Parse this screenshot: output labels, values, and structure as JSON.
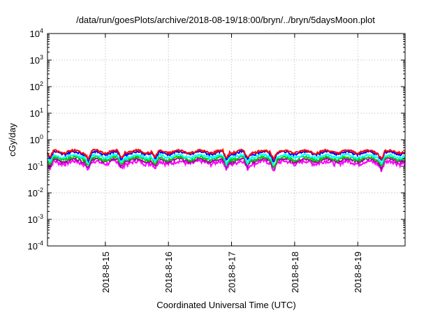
{
  "chart_data": {
    "type": "line",
    "title": "/data/run/goesPlots/archive/2018-08-19/18:00/bryn/../bryn/5daysMoon.plot",
    "xlabel": "Coordinated Universal Time (UTC)",
    "ylabel": "cGy/day",
    "yscale": "log",
    "ylim": [
      0.0001,
      10000
    ],
    "xlim": [
      "2018-08-14 02:00",
      "2018-08-19 18:00"
    ],
    "grid": true,
    "y_ticks": [
      {
        "base": "10",
        "exp": "-4"
      },
      {
        "base": "10",
        "exp": "-3"
      },
      {
        "base": "10",
        "exp": "-2"
      },
      {
        "base": "10",
        "exp": "-1"
      },
      {
        "base": "10",
        "exp": "0"
      },
      {
        "base": "10",
        "exp": "1"
      },
      {
        "base": "10",
        "exp": "2"
      },
      {
        "base": "10",
        "exp": "3"
      },
      {
        "base": "10",
        "exp": "4"
      }
    ],
    "x_ticks": [
      "2018-8-15",
      "2018-8-16",
      "2018-8-17",
      "2018-8-18",
      "2018-8-19"
    ],
    "series": [
      {
        "color": "#ff0000",
        "level": 0.36,
        "spread": 0.04
      },
      {
        "color": "#0000ff",
        "level": 0.32,
        "spread": 0.04
      },
      {
        "color": "#00ffff",
        "level": 0.24,
        "spread": 0.03
      },
      {
        "color": "#00cc00",
        "level": 0.2,
        "spread": 0.03
      },
      {
        "color": "#a000a0",
        "level": 0.17,
        "spread": 0.025
      },
      {
        "color": "#ff00ff",
        "level": 0.14,
        "spread": 0.03
      }
    ],
    "dips_utc": [
      "2018-08-14 03:00",
      "2018-08-14 17:30",
      "2018-08-15 06:00",
      "2018-08-15 19:00",
      "2018-08-16 22:00",
      "2018-08-17 06:00",
      "2018-08-17 16:00",
      "2018-08-19 09:00"
    ]
  }
}
